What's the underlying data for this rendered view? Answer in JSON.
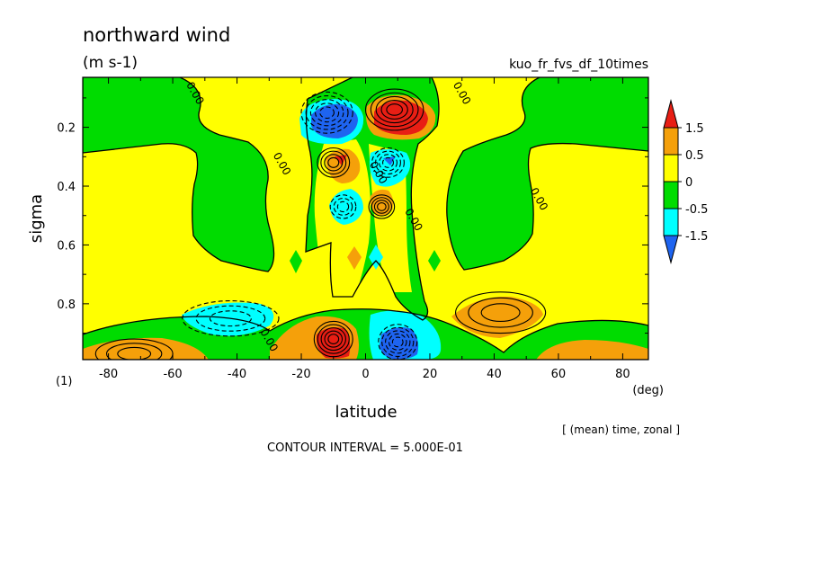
{
  "header": {
    "title": "northward wind",
    "units": "(m s-1)",
    "run_name": "kuo_fr_fvs_df_10times"
  },
  "footer": {
    "panel_index": "(1)",
    "x_unit": "(deg)",
    "average_note": "[ (mean) time, zonal ]",
    "contour_interval": "CONTOUR INTERVAL = 5.000E-01"
  },
  "colors": {
    "red": "#e81e14",
    "orange": "#f5a00a",
    "yellow": "#ffff00",
    "green": "#00dc00",
    "cyan": "#00ffff",
    "blue": "#1e64f0"
  },
  "chart_data": {
    "type": "contour",
    "title": "northward wind",
    "xlabel": "latitude",
    "ylabel": "sigma",
    "xlim": [
      -88,
      88
    ],
    "ylim": [
      0.03,
      0.99
    ],
    "y_inverted": true,
    "x_ticks": [
      -80,
      -60,
      -40,
      -20,
      0,
      20,
      40,
      60,
      80
    ],
    "x_tick_labels": [
      "-80",
      "-60",
      "-40",
      "-20",
      "0",
      "20",
      "40",
      "60",
      "80"
    ],
    "y_ticks": [
      0.2,
      0.4,
      0.6,
      0.8
    ],
    "y_tick_labels": [
      "0.2",
      "0.4",
      "0.6",
      "0.8"
    ],
    "contour_interval": 0.5,
    "contour_labels": [
      {
        "text": "0.00",
        "x": -54,
        "y": 0.09
      },
      {
        "text": "0.00",
        "x": -27,
        "y": 0.33
      },
      {
        "text": "0.00",
        "x": 29,
        "y": 0.09
      },
      {
        "text": "0.00",
        "x": 53,
        "y": 0.45
      },
      {
        "text": "0.00",
        "x": 3,
        "y": 0.36
      },
      {
        "text": "0.00",
        "x": 14,
        "y": 0.52
      },
      {
        "text": "0.00",
        "x": -31,
        "y": 0.93
      }
    ],
    "colorbar": {
      "levels": [
        "1.5",
        "0.5",
        "0",
        "-0.5",
        "-1.5"
      ],
      "colors": [
        "#e81e14",
        "#f5a00a",
        "#ffff00",
        "#00dc00",
        "#00ffff",
        "#1e64f0"
      ]
    },
    "features": [
      {
        "sign": "negative",
        "level": -1.5,
        "x": -12,
        "y": 0.15,
        "rx": 8,
        "ry": 0.07
      },
      {
        "sign": "positive",
        "level": 1.5,
        "x": 9,
        "y": 0.14,
        "rx": 9,
        "ry": 0.07
      },
      {
        "sign": "positive",
        "level": 1.0,
        "x": -10,
        "y": 0.32,
        "rx": 5,
        "ry": 0.05
      },
      {
        "sign": "negative",
        "level": -1.0,
        "x": 7,
        "y": 0.32,
        "rx": 5,
        "ry": 0.05
      },
      {
        "sign": "negative",
        "level": -0.5,
        "x": -7,
        "y": 0.47,
        "rx": 4,
        "ry": 0.04
      },
      {
        "sign": "positive",
        "level": 1.0,
        "x": 5,
        "y": 0.47,
        "rx": 4,
        "ry": 0.04
      },
      {
        "sign": "negative",
        "level": -0.5,
        "x": -42,
        "y": 0.85,
        "rx": 15,
        "ry": 0.06
      },
      {
        "sign": "positive",
        "level": 0.5,
        "x": 42,
        "y": 0.83,
        "rx": 14,
        "ry": 0.07
      },
      {
        "sign": "positive",
        "level": 1.5,
        "x": -10,
        "y": 0.92,
        "rx": 6,
        "ry": 0.06
      },
      {
        "sign": "negative",
        "level": -1.5,
        "x": 10,
        "y": 0.93,
        "rx": 6,
        "ry": 0.06
      },
      {
        "sign": "positive",
        "level": 0.5,
        "x": -72,
        "y": 0.97,
        "rx": 12,
        "ry": 0.05
      }
    ]
  }
}
